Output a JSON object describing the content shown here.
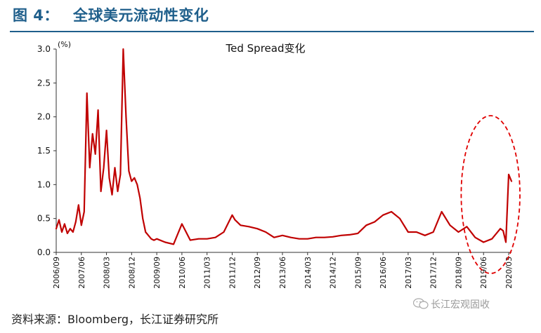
{
  "figure": {
    "label": "图 4：",
    "title": "全球美元流动性变化"
  },
  "source_note": "资料来源：Bloomberg，长江证券研究所",
  "watermark": "长江宏观固收",
  "chart_data": {
    "type": "line",
    "title": "Ted Spread变化",
    "ylabel": "(%)",
    "ylim": [
      0,
      3.0
    ],
    "yticks": [
      "0.0",
      "0.5",
      "1.0",
      "1.5",
      "2.0",
      "2.5",
      "3.0"
    ],
    "xlim": [
      "2006-09",
      "2020-04"
    ],
    "xticks": [
      "2006/09",
      "2007/06",
      "2008/03",
      "2008/12",
      "2009/09",
      "2010/06",
      "2011/03",
      "2011/12",
      "2012/09",
      "2013/06",
      "2014/03",
      "2014/12",
      "2015/09",
      "2016/06",
      "2017/03",
      "2017/12",
      "2018/09",
      "2019/06",
      "2020/03"
    ],
    "grid": false,
    "series_color": "#c00000",
    "highlight_color": "#e00000",
    "highlight": {
      "type": "ellipse",
      "from": "2019-01",
      "to": "2020-04"
    },
    "series": [
      {
        "x": [
          "2006-09",
          "2006-10",
          "2006-11",
          "2006-12",
          "2007-01",
          "2007-02",
          "2007-03",
          "2007-04",
          "2007-05",
          "2007-06",
          "2007-07",
          "2007-08",
          "2007-09",
          "2007-10",
          "2007-11",
          "2007-12",
          "2008-01",
          "2008-02",
          "2008-03",
          "2008-04",
          "2008-05",
          "2008-06",
          "2008-07",
          "2008-08",
          "2008-09",
          "2008-10",
          "2008-11",
          "2008-12",
          "2009-01",
          "2009-02",
          "2009-03",
          "2009-04",
          "2009-05",
          "2009-06",
          "2009-07",
          "2009-08",
          "2009-09",
          "2009-12",
          "2010-03",
          "2010-06",
          "2010-09",
          "2010-12",
          "2011-03",
          "2011-06",
          "2011-09",
          "2011-12",
          "2012-01",
          "2012-03",
          "2012-06",
          "2012-09",
          "2012-12",
          "2013-03",
          "2013-06",
          "2013-09",
          "2013-12",
          "2014-03",
          "2014-06",
          "2014-09",
          "2014-12",
          "2015-03",
          "2015-06",
          "2015-09",
          "2015-12",
          "2016-03",
          "2016-06",
          "2016-09",
          "2016-12",
          "2017-03",
          "2017-06",
          "2017-09",
          "2017-12",
          "2018-03",
          "2018-06",
          "2018-09",
          "2018-12",
          "2019-03",
          "2019-06",
          "2019-09",
          "2019-12",
          "2020-01",
          "2020-02",
          "2020-03",
          "2020-04"
        ],
        "values": [
          0.35,
          0.48,
          0.3,
          0.42,
          0.28,
          0.35,
          0.3,
          0.45,
          0.7,
          0.4,
          0.6,
          2.35,
          1.25,
          1.75,
          1.45,
          2.1,
          0.9,
          1.25,
          1.8,
          1.1,
          0.85,
          1.25,
          0.9,
          1.15,
          3.0,
          2.0,
          1.2,
          1.05,
          1.1,
          1.0,
          0.8,
          0.5,
          0.3,
          0.25,
          0.2,
          0.18,
          0.2,
          0.15,
          0.12,
          0.42,
          0.18,
          0.2,
          0.2,
          0.22,
          0.3,
          0.55,
          0.48,
          0.4,
          0.38,
          0.35,
          0.3,
          0.22,
          0.25,
          0.22,
          0.2,
          0.2,
          0.22,
          0.22,
          0.23,
          0.25,
          0.26,
          0.28,
          0.4,
          0.45,
          0.55,
          0.6,
          0.5,
          0.3,
          0.3,
          0.25,
          0.3,
          0.6,
          0.4,
          0.3,
          0.38,
          0.22,
          0.15,
          0.2,
          0.35,
          0.32,
          0.15,
          1.15,
          1.05
        ]
      }
    ]
  }
}
